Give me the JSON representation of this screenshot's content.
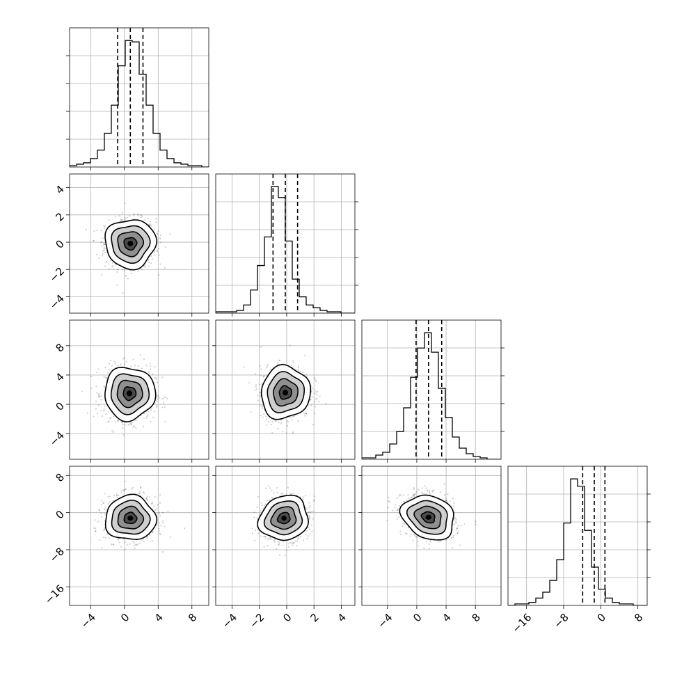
{
  "chart_data": {
    "type": "corner",
    "grid": true,
    "quantiles": [
      0.16,
      0.5,
      0.84
    ],
    "contour_levels": 4,
    "parameters": [
      {
        "index": 0,
        "range": [
          -6.5,
          10.0
        ],
        "ticks": [
          -4,
          0,
          4,
          8
        ],
        "tick_labels": [
          "−4",
          "0",
          "4",
          "8"
        ],
        "hist_counts": [
          1,
          2,
          3,
          6,
          12,
          24,
          44,
          72,
          90,
          89,
          66,
          44,
          24,
          12,
          6,
          3,
          2,
          1,
          1,
          0
        ],
        "quantile_values": [
          -0.8,
          0.7,
          2.2
        ]
      },
      {
        "index": 1,
        "range": [
          -5.2,
          5.0
        ],
        "ticks": [
          -4,
          -2,
          0,
          2,
          4
        ],
        "tick_labels": [
          "−4",
          "−2",
          "0",
          "2",
          "4"
        ],
        "hist_counts": [
          1,
          1,
          1,
          2,
          6,
          17,
          35,
          56,
          93,
          85,
          53,
          25,
          12,
          6,
          4,
          2,
          1,
          1,
          0,
          0
        ],
        "quantile_values": [
          -1.0,
          -0.1,
          0.8
        ]
      },
      {
        "index": 2,
        "range": [
          -7.5,
          11.5
        ],
        "ticks": [
          -4,
          0,
          4,
          8
        ],
        "tick_labels": [
          "−4",
          "0",
          "4",
          "8"
        ],
        "hist_counts": [
          1,
          1,
          3,
          5,
          11,
          20,
          37,
          59,
          80,
          91,
          77,
          51,
          30,
          16,
          8,
          4,
          2,
          1,
          0,
          0
        ],
        "quantile_values": [
          -0.1,
          1.6,
          3.4
        ]
      },
      {
        "index": 3,
        "range": [
          -20.0,
          10.0
        ],
        "ticks": [
          -16,
          -8,
          0,
          8
        ],
        "tick_labels": [
          "−16",
          "−8",
          "0",
          "8"
        ],
        "hist_counts": [
          0,
          1,
          1,
          2,
          5,
          9,
          17,
          31,
          56,
          86,
          81,
          51,
          26,
          11,
          5,
          2,
          1,
          1,
          0,
          0
        ],
        "quantile_values": [
          -3.9,
          -1.4,
          0.9
        ]
      }
    ],
    "pairs": [
      {
        "x_param": 0,
        "y_param": 1,
        "center": [
          0.7,
          -0.1
        ],
        "sigma": [
          1.5,
          0.9
        ],
        "rho": 0.0
      },
      {
        "x_param": 0,
        "y_param": 2,
        "center": [
          0.6,
          1.5
        ],
        "sigma": [
          1.5,
          1.8
        ],
        "rho": 0.0
      },
      {
        "x_param": 1,
        "y_param": 2,
        "center": [
          -0.1,
          1.6
        ],
        "sigma": [
          0.9,
          1.8
        ],
        "rho": 0.05
      },
      {
        "x_param": 0,
        "y_param": 3,
        "center": [
          0.7,
          -1.2
        ],
        "sigma": [
          1.5,
          2.4
        ],
        "rho": 0.0
      },
      {
        "x_param": 1,
        "y_param": 3,
        "center": [
          -0.2,
          -1.2
        ],
        "sigma": [
          0.9,
          2.4
        ],
        "rho": 0.1
      },
      {
        "x_param": 2,
        "y_param": 3,
        "center": [
          1.6,
          -1.0
        ],
        "sigma": [
          1.8,
          2.4
        ],
        "rho": -0.2
      }
    ]
  }
}
